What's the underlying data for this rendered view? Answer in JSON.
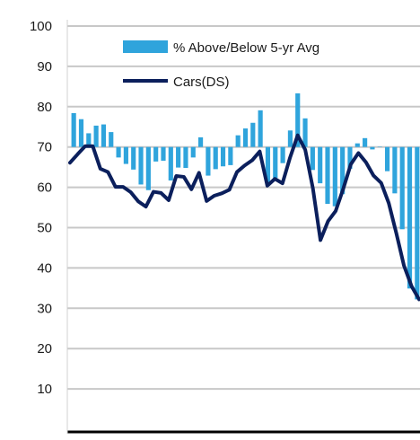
{
  "chart_data": {
    "type": "bar+line",
    "title": "",
    "xlabel": "",
    "ylabel": "",
    "ylim": [
      0,
      100
    ],
    "y_ticks": [
      "10",
      "20",
      "30",
      "40",
      "50",
      "60",
      "70",
      "80",
      "90",
      "100"
    ],
    "baseline": 70,
    "grid": true,
    "legend_position": "top",
    "colors": {
      "bars": "#2fa4dc",
      "line": "#0b1f5c",
      "grid": "#c8c8c8",
      "axis": "#000000"
    },
    "series": [
      {
        "name": "% Above/Below  5-yr Avg",
        "kind": "bar",
        "values": [
          78.4,
          76.9,
          73.4,
          75.3,
          75.6,
          73.7,
          67.4,
          65.8,
          64.4,
          60.7,
          59.3,
          66.4,
          66.6,
          61.7,
          64.9,
          64.8,
          67.4,
          72.4,
          62.9,
          64.5,
          65.2,
          65.5,
          72.9,
          74.6,
          76.0,
          79.1,
          60.4,
          62.3,
          66.0,
          74.1,
          83.3,
          77.1,
          64.3,
          61.0,
          55.9,
          55.3,
          58.3,
          64.6,
          70.9,
          72.2,
          69.4,
          70.1,
          64.0,
          58.5,
          49.6,
          34.9,
          32.2
        ]
      },
      {
        "name": "Cars(DS)",
        "kind": "line",
        "values": [
          66.1,
          68.2,
          70.2,
          70.2,
          64.6,
          63.8,
          60.1,
          60.1,
          58.8,
          56.5,
          55.2,
          58.9,
          58.6,
          56.8,
          62.8,
          62.6,
          59.5,
          63.6,
          56.6,
          57.9,
          58.5,
          59.4,
          63.8,
          65.4,
          66.7,
          68.9,
          60.4,
          62.1,
          61.0,
          67.4,
          72.9,
          69.3,
          59.8,
          46.9,
          51.6,
          54.1,
          59.6,
          65.7,
          68.5,
          66.2,
          62.9,
          61.1,
          56.1,
          48.6,
          40.6,
          35.5,
          32.2
        ]
      }
    ]
  }
}
